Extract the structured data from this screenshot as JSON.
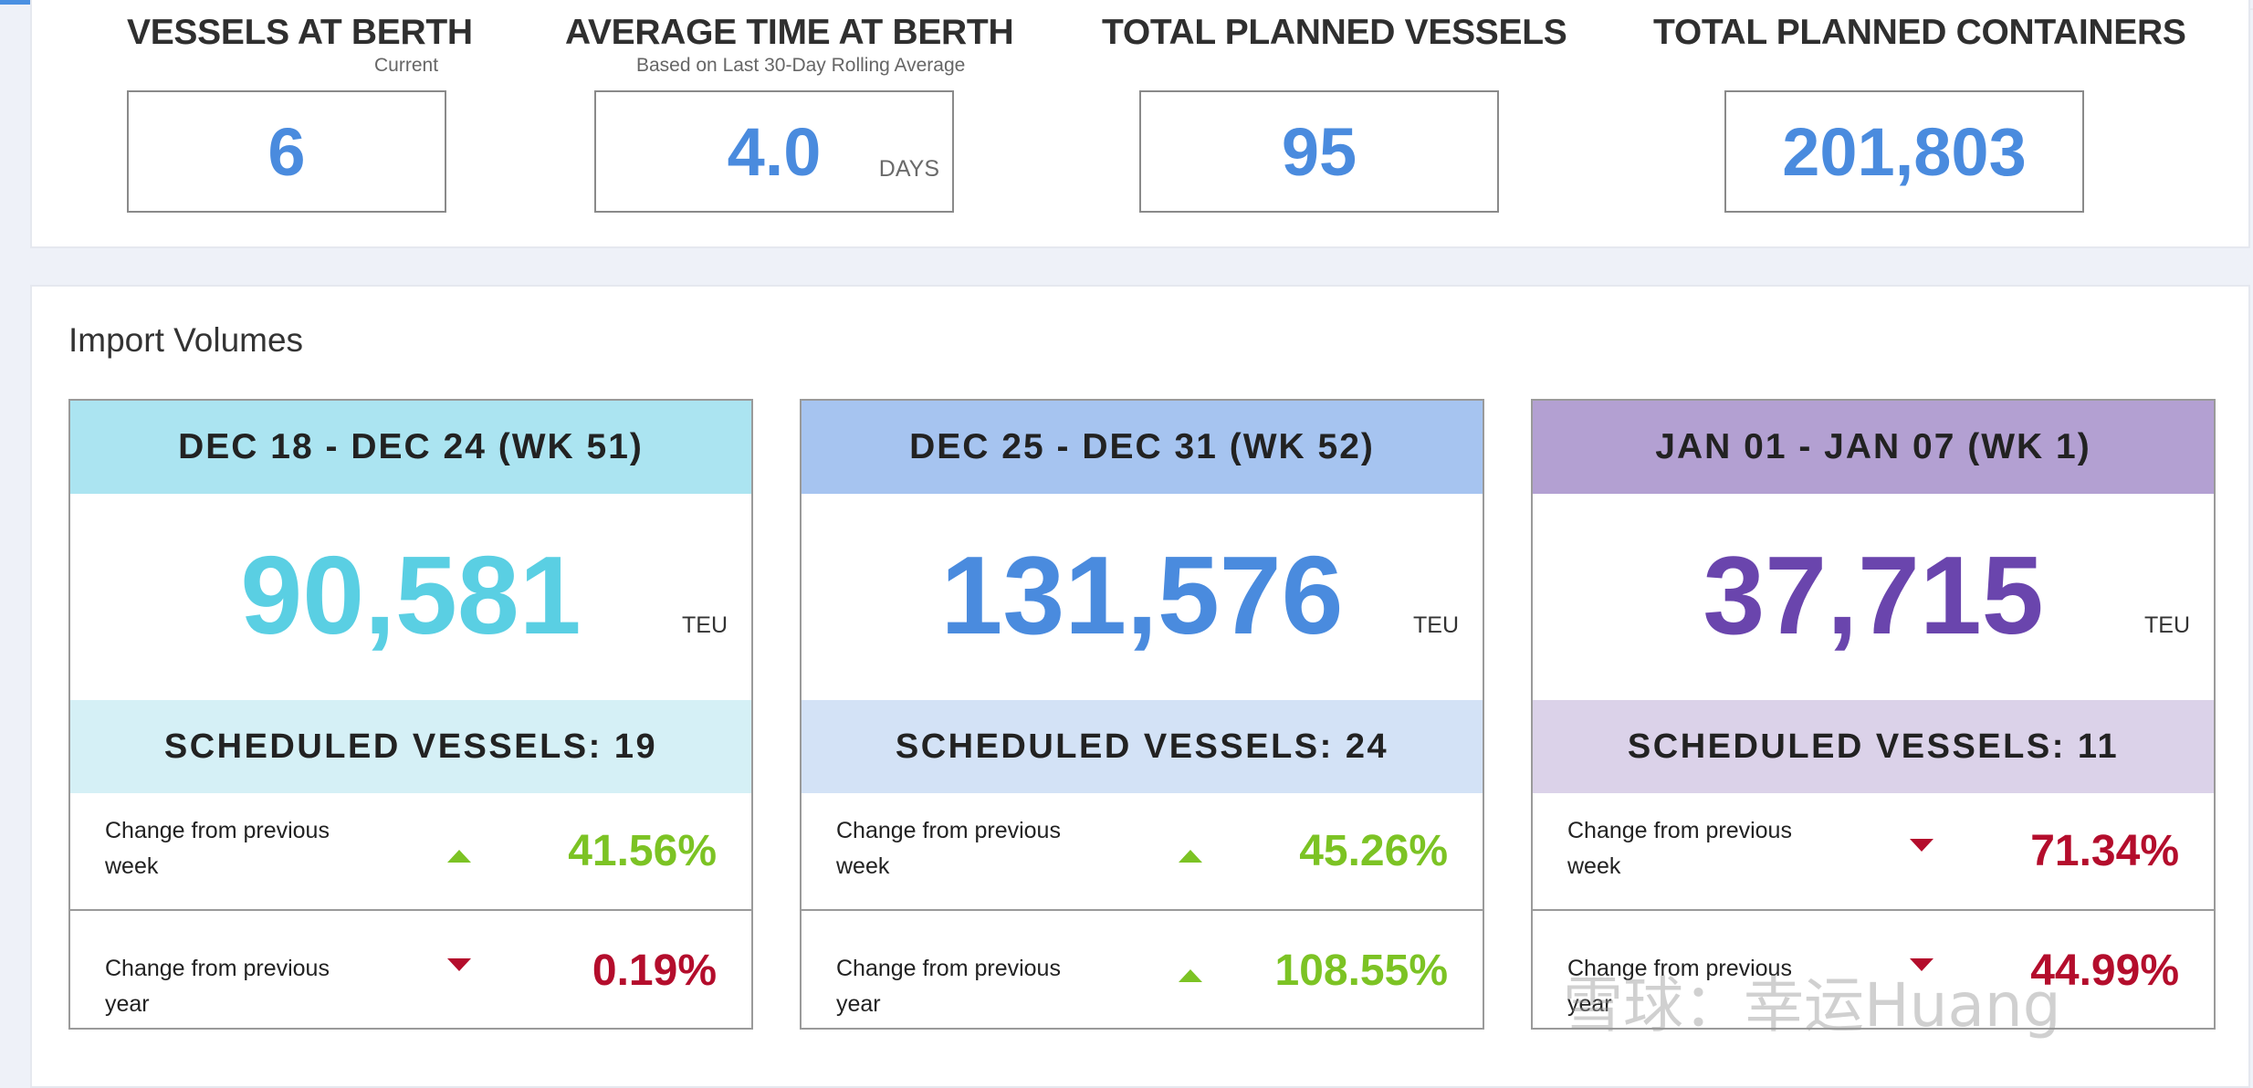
{
  "summary": {
    "stats": [
      {
        "title": "VESSELS AT BERTH",
        "subtitle": "Current",
        "value": "6",
        "unit": ""
      },
      {
        "title": "AVERAGE TIME AT BERTH",
        "subtitle": "Based on Last 30-Day Rolling Average",
        "value": "4.0",
        "unit": "DAYS"
      },
      {
        "title": "TOTAL PLANNED VESSELS",
        "subtitle": "",
        "value": "95",
        "unit": ""
      },
      {
        "title": "TOTAL PLANNED CONTAINERS",
        "subtitle": "",
        "value": "201,803",
        "unit": ""
      }
    ]
  },
  "import_volumes": {
    "title": "Import Volumes",
    "weeks": [
      {
        "header": "DEC 18 - DEC 24 (WK 51)",
        "value": "90,581",
        "unit": "TEU",
        "vessels": "SCHEDULED VESSELS: 19",
        "header_color": "#abe4f1",
        "bar_color": "#d5f0f6",
        "value_color": "#5acfe3",
        "changes": [
          {
            "label": "Change from previous week",
            "direction": "up",
            "value": "41.56%"
          },
          {
            "label": "Change from previous year",
            "direction": "down",
            "value": "0.19%"
          }
        ]
      },
      {
        "header": "DEC 25 - DEC 31 (WK 52)",
        "value": "131,576",
        "unit": "TEU",
        "vessels": "SCHEDULED VESSELS: 24",
        "header_color": "#a6c4f0",
        "bar_color": "#d3e2f6",
        "value_color": "#4a8bde",
        "changes": [
          {
            "label": "Change from previous week",
            "direction": "up",
            "value": "45.26%"
          },
          {
            "label": "Change from previous year",
            "direction": "up",
            "value": "108.55%"
          }
        ]
      },
      {
        "header": "JAN 01 - JAN 07 (WK 1)",
        "value": "37,715",
        "unit": "TEU",
        "vessels": "SCHEDULED VESSELS: 11",
        "header_color": "#b3a0d2",
        "bar_color": "#dbd2e9",
        "value_color": "#6a45ad",
        "changes": [
          {
            "label": "Change from previous week",
            "direction": "down",
            "value": "71.34%"
          },
          {
            "label": "Change from previous year",
            "direction": "down",
            "value": "44.99%"
          }
        ]
      }
    ]
  },
  "colors": {
    "positive": "#7cc324",
    "negative": "#b40d2c",
    "stat_value": "#4a8bde"
  },
  "watermark": "雪球：幸运Huang"
}
